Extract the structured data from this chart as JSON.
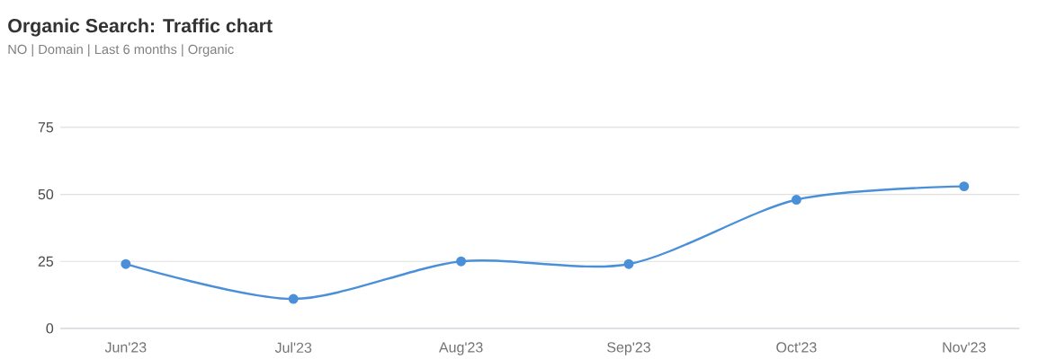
{
  "chart_data": {
    "type": "line",
    "title": "Organic Search: Traffic chart",
    "subtitle": "NO | Domain | Last 6 months | Organic",
    "categories": [
      "Jun'23",
      "Jul'23",
      "Aug'23",
      "Sep'23",
      "Oct'23",
      "Nov'23"
    ],
    "series": [
      {
        "color": "#4a90d9",
        "values": [
          24,
          11,
          25,
          24,
          48,
          53
        ]
      }
    ],
    "ylim": [
      0,
      75
    ],
    "yticks": [
      0,
      25,
      50,
      75
    ],
    "grid": "y",
    "marker": "circle",
    "line_style": "solid"
  }
}
